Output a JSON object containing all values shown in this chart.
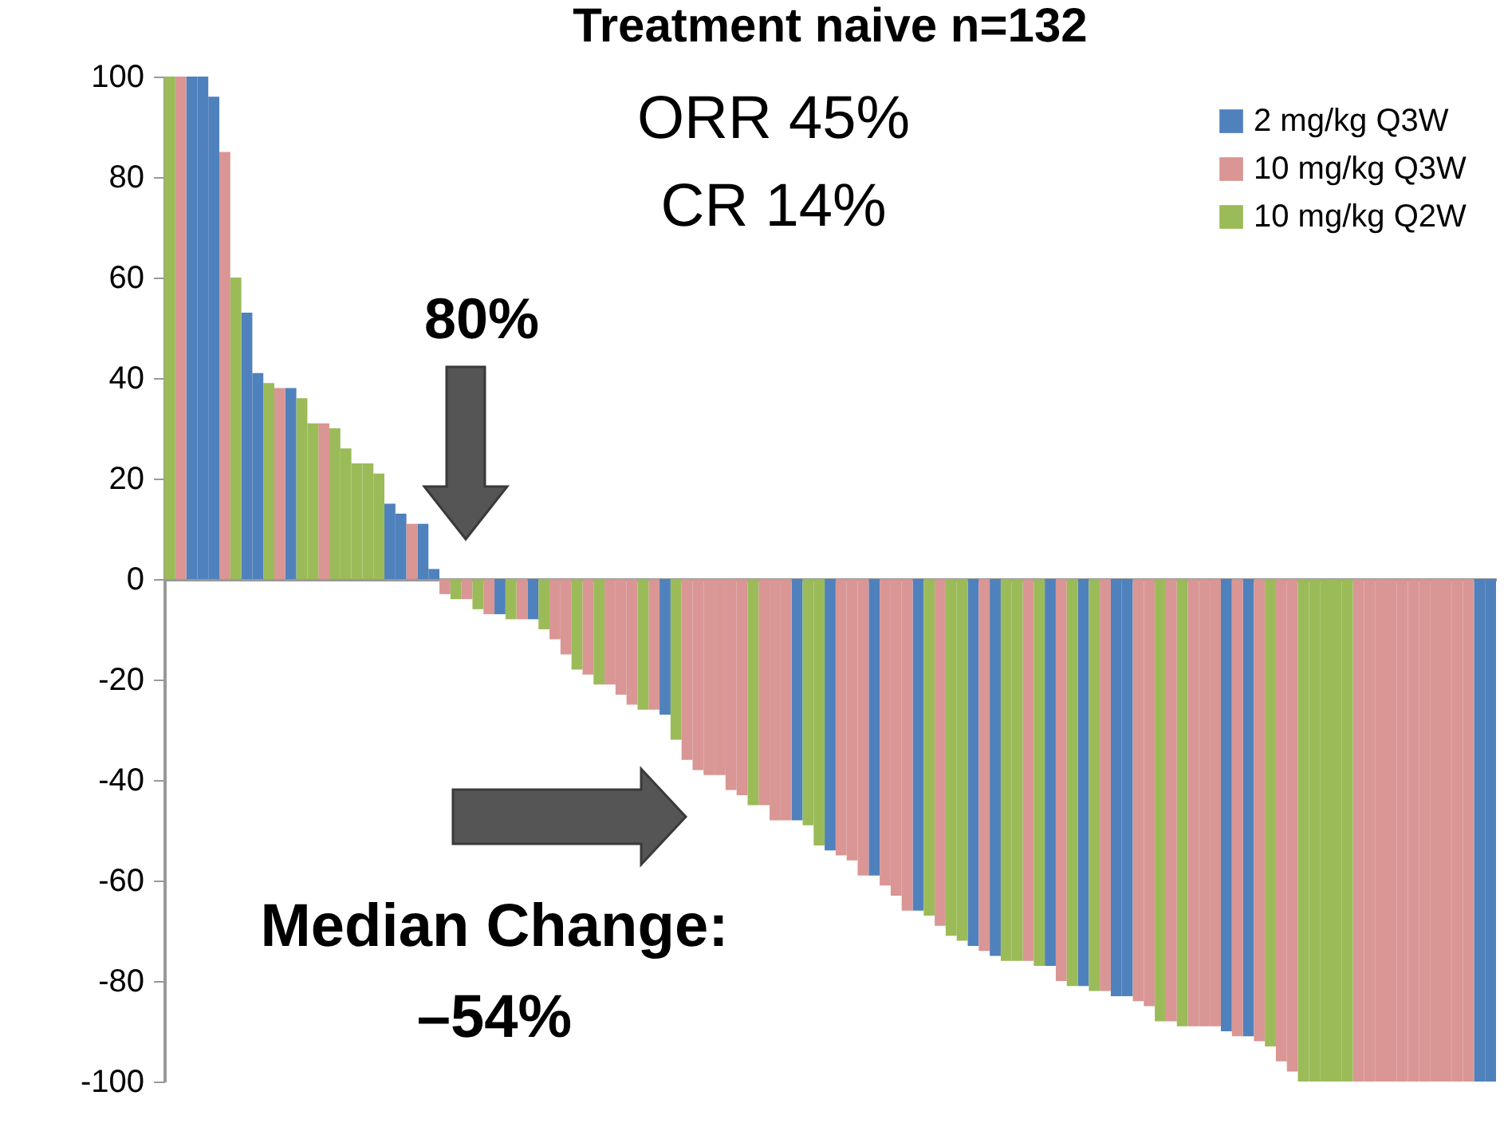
{
  "chart_data": {
    "type": "bar",
    "title": "Treatment naive n=132",
    "categories": [
      null,
      null,
      null,
      null,
      null,
      null,
      null,
      null,
      null,
      null,
      null,
      null,
      null,
      null,
      null,
      null,
      null,
      null,
      null,
      null,
      null,
      null,
      null,
      null,
      null,
      null,
      null,
      null,
      null,
      null,
      null,
      null,
      null,
      null,
      null,
      null,
      null,
      null,
      null,
      null,
      null,
      null,
      null,
      null,
      null,
      null,
      null,
      null,
      null,
      null,
      null,
      null,
      null,
      null,
      null,
      null,
      null,
      null,
      null,
      null,
      null,
      null,
      null,
      null,
      null,
      null,
      null,
      null,
      null,
      null,
      null,
      null,
      null,
      null,
      null,
      null,
      null,
      null,
      null,
      null,
      null,
      null,
      null,
      null,
      null,
      null,
      null,
      null,
      null,
      null,
      null,
      null,
      null,
      null,
      null,
      null,
      null,
      null,
      null,
      null,
      null,
      null,
      null,
      null,
      null,
      null,
      null,
      null,
      null,
      null,
      null,
      null,
      null,
      null,
      null,
      null,
      null,
      null,
      null,
      null,
      null
    ],
    "series": [
      {
        "name": "2 mg/kg Q3W",
        "color": "#4f81bd",
        "values": [
          null,
          null,
          100,
          100,
          96,
          null,
          null,
          53,
          41,
          null,
          null,
          38,
          null,
          null,
          null,
          null,
          null,
          null,
          null,
          null,
          15,
          13,
          null,
          11,
          2,
          null,
          null,
          null,
          null,
          null,
          -7,
          null,
          null,
          -8,
          null,
          null,
          null,
          null,
          null,
          null,
          null,
          null,
          null,
          null,
          null,
          -27,
          null,
          null,
          null,
          null,
          null,
          null,
          null,
          null,
          null,
          null,
          null,
          -48,
          null,
          null,
          -54,
          null,
          null,
          null,
          -59,
          null,
          null,
          null,
          -66,
          null,
          null,
          null,
          null,
          -73,
          null,
          -75,
          null,
          null,
          null,
          null,
          -77,
          null,
          null,
          -81,
          null,
          null,
          -83,
          -83,
          null,
          null,
          null,
          null,
          null,
          null,
          null,
          null,
          -90,
          null,
          -91,
          null,
          null,
          null,
          null,
          null,
          null,
          null,
          null,
          null,
          null,
          null,
          null,
          null,
          null,
          null,
          null,
          null,
          null,
          null,
          null,
          -100,
          -100
        ]
      },
      {
        "name": "10 mg/kg Q3W",
        "color": "#d99694",
        "values": [
          null,
          100,
          null,
          null,
          null,
          85,
          null,
          null,
          null,
          null,
          38,
          null,
          null,
          null,
          31,
          null,
          null,
          null,
          null,
          null,
          null,
          null,
          11,
          null,
          null,
          -3,
          null,
          -4,
          null,
          -7,
          null,
          null,
          -8,
          null,
          null,
          -12,
          -15,
          null,
          -19,
          null,
          -21,
          -23,
          -25,
          null,
          -26,
          null,
          null,
          -36,
          -38,
          -39,
          -39,
          -42,
          -43,
          null,
          -45,
          -48,
          -48,
          null,
          null,
          null,
          null,
          -55,
          -56,
          -59,
          null,
          -61,
          -63,
          -66,
          null,
          null,
          -69,
          null,
          null,
          null,
          -74,
          null,
          null,
          null,
          -76,
          null,
          null,
          -80,
          null,
          null,
          null,
          -82,
          null,
          null,
          -84,
          -85,
          null,
          -88,
          null,
          -89,
          -89,
          -89,
          null,
          -91,
          null,
          -92,
          null,
          -96,
          -98,
          null,
          null,
          null,
          null,
          null,
          -100,
          -100,
          -100,
          -100,
          -100,
          -100,
          -100,
          -100,
          -100,
          -100,
          -100,
          null,
          null
        ]
      },
      {
        "name": "10 mg/kg Q2W",
        "color": "#9bbb59",
        "values": [
          100,
          null,
          null,
          null,
          null,
          null,
          60,
          null,
          null,
          39,
          null,
          null,
          36,
          31,
          null,
          30,
          26,
          23,
          23,
          21,
          null,
          null,
          null,
          null,
          null,
          null,
          -4,
          null,
          -6,
          null,
          null,
          -8,
          null,
          null,
          -10,
          null,
          null,
          -18,
          null,
          -21,
          null,
          null,
          null,
          -26,
          null,
          null,
          -32,
          null,
          null,
          null,
          null,
          null,
          null,
          -45,
          null,
          null,
          null,
          null,
          -49,
          -53,
          null,
          null,
          null,
          null,
          null,
          null,
          null,
          null,
          null,
          -67,
          null,
          -71,
          -72,
          null,
          null,
          null,
          -76,
          -76,
          null,
          -77,
          null,
          null,
          -81,
          null,
          -82,
          null,
          null,
          null,
          null,
          null,
          -88,
          null,
          -89,
          null,
          null,
          null,
          null,
          null,
          null,
          null,
          -93,
          null,
          null,
          -100,
          -100,
          -100,
          -100,
          -100,
          null,
          null,
          null,
          null,
          null,
          null,
          null,
          null,
          null,
          null,
          null,
          null,
          null
        ]
      }
    ],
    "ylim": [
      -100,
      100
    ],
    "yticks": [
      -100,
      -80,
      -60,
      -40,
      -20,
      0,
      20,
      40,
      60,
      80,
      100
    ],
    "legend": "top right",
    "annotations": [
      "ORR 45%",
      "CR 14%",
      "80%",
      "Median Change:\n–54%"
    ]
  }
}
